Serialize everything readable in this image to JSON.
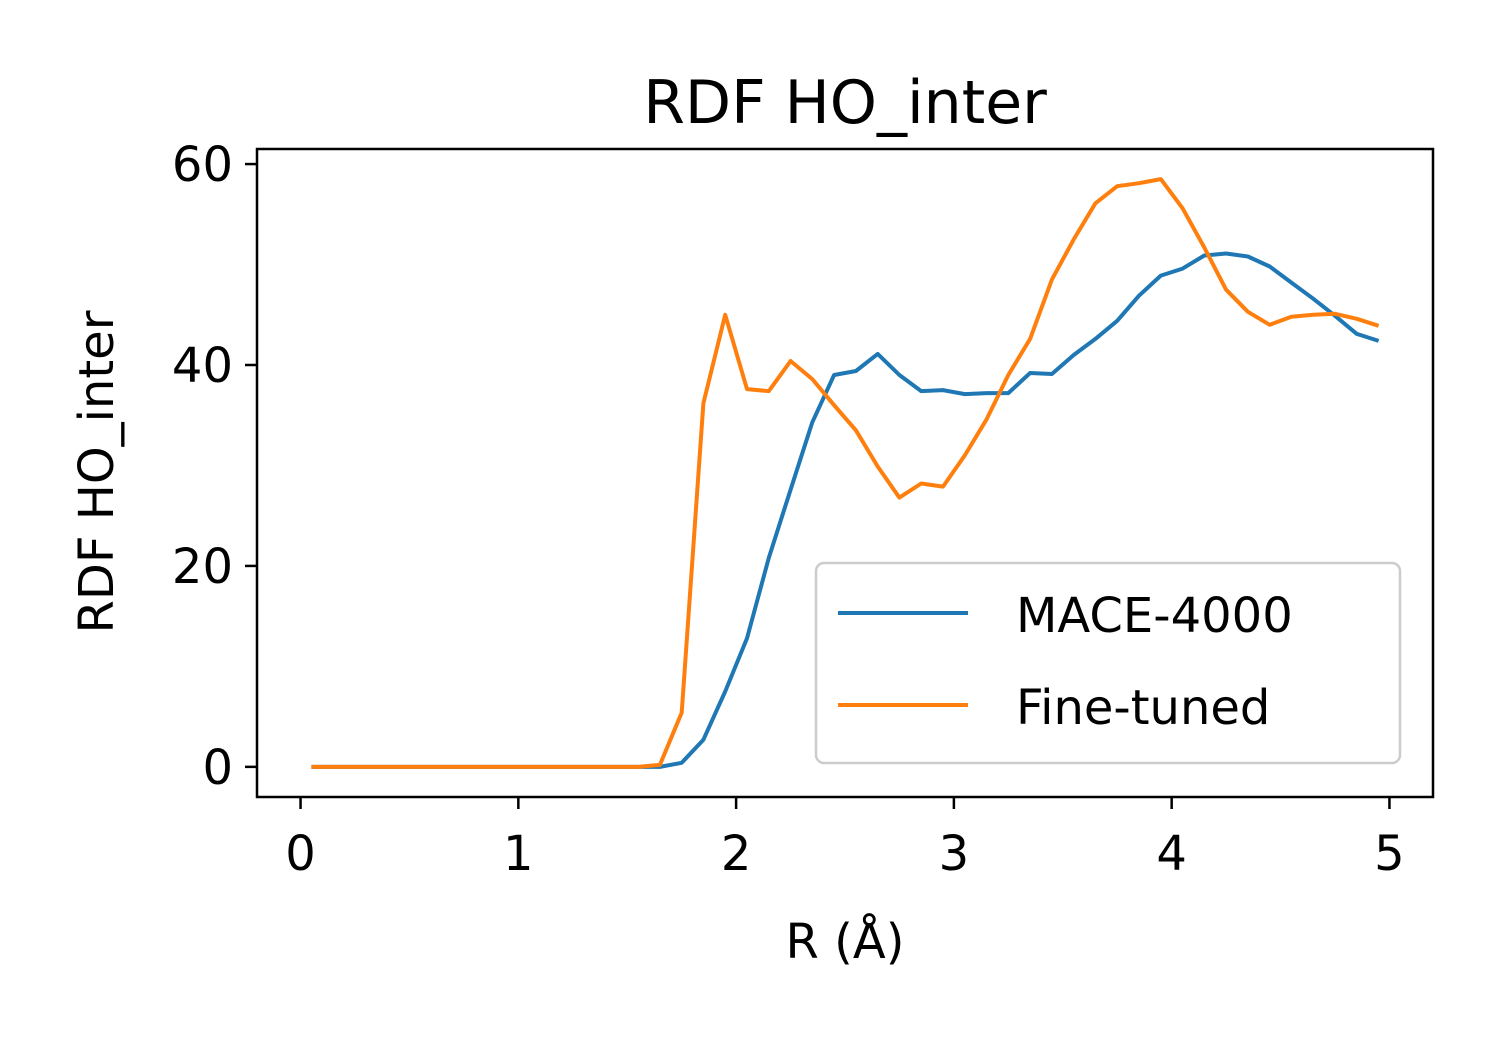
{
  "chart_data": {
    "type": "line",
    "title": "RDF HO_inter",
    "xlabel": "R (Å)",
    "ylabel": "RDF HO_inter",
    "xlim": [
      -0.2,
      5.2
    ],
    "ylim": [
      -3,
      61.5
    ],
    "xticks": [
      0,
      1,
      2,
      3,
      4,
      5
    ],
    "yticks": [
      0,
      20,
      40,
      60
    ],
    "grid": false,
    "legend_position": "lower-right",
    "x": [
      0.05,
      0.15,
      0.25,
      0.35,
      0.45,
      0.55,
      0.65,
      0.75,
      0.85,
      0.95,
      1.05,
      1.15,
      1.25,
      1.35,
      1.45,
      1.55,
      1.65,
      1.75,
      1.85,
      1.95,
      2.05,
      2.15,
      2.25,
      2.35,
      2.45,
      2.55,
      2.65,
      2.75,
      2.85,
      2.95,
      3.05,
      3.15,
      3.25,
      3.35,
      3.45,
      3.55,
      3.65,
      3.75,
      3.85,
      3.95,
      4.05,
      4.15,
      4.25,
      4.35,
      4.45,
      4.55,
      4.65,
      4.75,
      4.85,
      4.95
    ],
    "series": [
      {
        "name": "MACE-4000",
        "color": "#1f77b4",
        "values": [
          0,
          0,
          0,
          0,
          0,
          0,
          0,
          0,
          0,
          0,
          0,
          0,
          0,
          0,
          0,
          0,
          0,
          0.4,
          2.7,
          7.5,
          12.8,
          20.8,
          27.6,
          34.3,
          39.0,
          39.4,
          41.1,
          39.0,
          37.4,
          37.5,
          37.1,
          37.2,
          37.2,
          39.2,
          39.1,
          41.0,
          42.6,
          44.4,
          46.9,
          48.9,
          49.6,
          50.9,
          51.1,
          50.8,
          49.8,
          48.2,
          46.6,
          44.9,
          43.1,
          42.4
        ]
      },
      {
        "name": "Fine-tuned",
        "color": "#ff7f0e",
        "values": [
          0,
          0,
          0,
          0,
          0,
          0,
          0,
          0,
          0,
          0,
          0,
          0,
          0,
          0,
          0,
          0,
          0.2,
          5.4,
          36.2,
          45.0,
          37.6,
          37.4,
          40.4,
          38.6,
          36.0,
          33.5,
          29.9,
          26.8,
          28.2,
          27.9,
          31.0,
          34.6,
          39.0,
          42.6,
          48.5,
          52.5,
          56.1,
          57.8,
          58.1,
          58.5,
          55.6,
          51.7,
          47.5,
          45.3,
          44.0,
          44.8,
          45.0,
          45.1,
          44.6,
          43.9
        ]
      }
    ]
  }
}
